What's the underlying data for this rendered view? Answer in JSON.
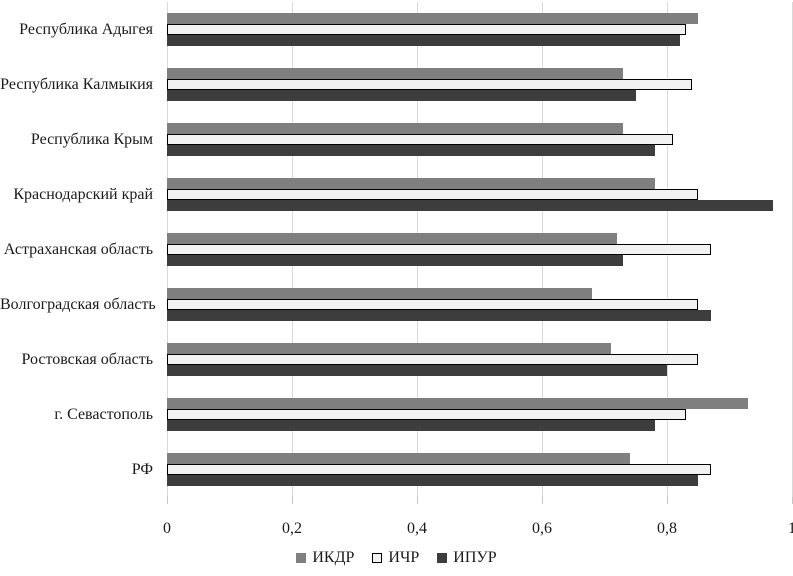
{
  "chart_data": {
    "type": "bar",
    "orientation": "horizontal",
    "title": "",
    "categories": [
      "Республика Адыгея",
      "Республика Калмыкия",
      "Республика Крым",
      "Краснодарский край",
      "Астраханская область",
      "Волгоградская область",
      "Ростовская область",
      "г. Севастополь",
      "РФ"
    ],
    "series": [
      {
        "name": "ИКДР",
        "color": "#7f7f7f",
        "border_color": "",
        "values": [
          0.85,
          0.73,
          0.73,
          0.78,
          0.72,
          0.68,
          0.71,
          0.93,
          0.74
        ]
      },
      {
        "name": "ИЧР",
        "color": "#f2f2f2",
        "border_color": "#000000",
        "values": [
          0.83,
          0.84,
          0.81,
          0.85,
          0.87,
          0.85,
          0.85,
          0.83,
          0.87
        ]
      },
      {
        "name": "ИПУР",
        "color": "#3d3d3d",
        "border_color": "",
        "values": [
          0.82,
          0.75,
          0.78,
          0.97,
          0.73,
          0.87,
          0.8,
          0.78,
          0.85
        ]
      }
    ],
    "series_order_top_to_bottom": [
      "ИКДР",
      "ИЧР",
      "ИПУР"
    ],
    "xlim": [
      0,
      1
    ],
    "x_ticks": [
      {
        "value": 0,
        "label": "0"
      },
      {
        "value": 0.2,
        "label": "0,2"
      },
      {
        "value": 0.4,
        "label": "0,4"
      },
      {
        "value": 0.6,
        "label": "0,6"
      },
      {
        "value": 0.8,
        "label": "0,8"
      },
      {
        "value": 1,
        "label": "1"
      }
    ],
    "grid": true,
    "gridline_color": "#d9d9d9",
    "legend_position": "bottom",
    "legend_labels": [
      "ИКДР",
      "ИЧР",
      "ИПУР"
    ]
  }
}
